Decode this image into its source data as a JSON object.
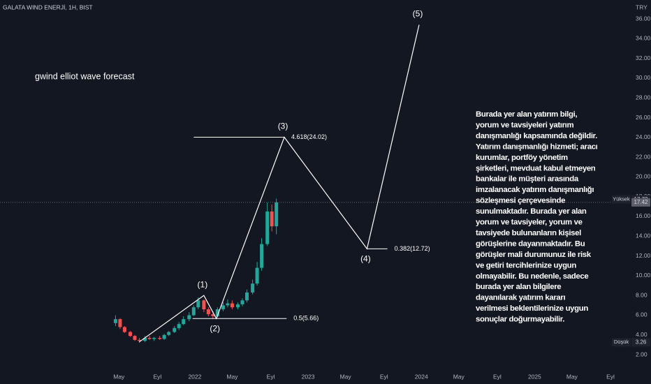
{
  "chart_data": {
    "type": "candlestick",
    "symbol": "GALATA WIND ENERJİ, 1H, BIST",
    "currency": "TRY",
    "title": "gwind elliot wave forecast",
    "xlim": [
      2020.28,
      2025.83
    ],
    "xticks": [
      {
        "value": 2021.33,
        "label": "May"
      },
      {
        "value": 2021.67,
        "label": "Eyl"
      },
      2022,
      {
        "value": 2022.33,
        "label": "May"
      },
      {
        "value": 2022.67,
        "label": "Eyl"
      },
      2023,
      {
        "value": 2023.33,
        "label": "May"
      },
      {
        "value": 2023.67,
        "label": "Eyl"
      },
      2024,
      {
        "value": 2024.33,
        "label": "May"
      },
      {
        "value": 2024.67,
        "label": "Eyl"
      },
      2025,
      {
        "value": 2025.33,
        "label": "May"
      },
      {
        "value": 2025.67,
        "label": "Eyl"
      }
    ],
    "ylim": [
      0.45,
      37.91
    ],
    "yticks": [
      {
        "value": 2,
        "label": "2.00"
      },
      {
        "value": 4,
        "label": "4.00"
      },
      {
        "value": 6,
        "label": "6.00"
      },
      {
        "value": 8,
        "label": "8.00"
      },
      {
        "value": 10,
        "label": "10.00"
      },
      {
        "value": 12,
        "label": "12.00"
      },
      {
        "value": 14,
        "label": "14.00"
      },
      {
        "value": 16,
        "label": "16.00"
      },
      {
        "value": 18,
        "label": "18.00"
      },
      {
        "value": 20,
        "label": "20.00"
      },
      {
        "value": 22,
        "label": "22.00"
      },
      {
        "value": 24,
        "label": "24.00"
      },
      {
        "value": 26,
        "label": "26.00"
      },
      {
        "value": 28,
        "label": "28.00"
      },
      {
        "value": 30,
        "label": "30.00"
      },
      {
        "value": 32,
        "label": "32.00"
      },
      {
        "value": 34,
        "label": "34.00"
      },
      {
        "value": 36,
        "label": "36.00"
      }
    ],
    "grid": false,
    "up_color": "#26a69a",
    "down_color": "#ef5350",
    "candles": {
      "x": [
        2021.3,
        2021.34,
        2021.38,
        2021.43,
        2021.47,
        2021.51,
        2021.56,
        2021.6,
        2021.64,
        2021.69,
        2021.73,
        2021.77,
        2021.82,
        2021.86,
        2021.9,
        2021.95,
        2021.99,
        2022.03,
        2022.08,
        2022.12,
        2022.16,
        2022.2,
        2022.25,
        2022.29,
        2022.33,
        2022.38,
        2022.42,
        2022.46,
        2022.51,
        2022.55,
        2022.59,
        2022.64,
        2022.68,
        2022.72
      ],
      "open": [
        5.2,
        5.6,
        4.8,
        4.3,
        3.9,
        3.5,
        3.4,
        3.7,
        3.6,
        3.7,
        3.6,
        4.0,
        4.3,
        4.7,
        5.1,
        5.6,
        6.0,
        6.8,
        7.5,
        6.6,
        6.1,
        5.9,
        6.6,
        7.0,
        7.2,
        6.8,
        7.1,
        7.5,
        8.3,
        9.2,
        10.8,
        13.2,
        16.5,
        15.0
      ],
      "high": [
        6.0,
        5.7,
        4.9,
        4.4,
        4.0,
        3.7,
        3.9,
        3.9,
        3.8,
        3.9,
        4.1,
        4.4,
        4.9,
        5.3,
        5.9,
        6.3,
        7.0,
        7.8,
        7.6,
        6.8,
        6.4,
        6.8,
        7.3,
        7.6,
        7.5,
        7.3,
        7.7,
        8.6,
        9.6,
        11.4,
        13.8,
        17.4,
        17.2,
        17.8
      ],
      "low": [
        4.9,
        4.6,
        4.2,
        3.8,
        3.4,
        3.2,
        3.3,
        3.5,
        3.4,
        3.5,
        3.5,
        3.9,
        4.2,
        4.5,
        5.0,
        5.4,
        5.9,
        6.6,
        6.3,
        5.9,
        5.6,
        5.8,
        6.4,
        6.8,
        6.6,
        6.6,
        6.9,
        7.3,
        8.1,
        9.0,
        10.5,
        13.0,
        14.5,
        14.2
      ],
      "close": [
        5.6,
        4.8,
        4.3,
        3.9,
        3.5,
        3.4,
        3.7,
        3.6,
        3.7,
        3.6,
        4.0,
        4.3,
        4.7,
        5.1,
        5.6,
        6.0,
        6.8,
        7.5,
        6.6,
        6.1,
        5.9,
        6.6,
        7.0,
        7.2,
        6.8,
        7.1,
        7.5,
        8.3,
        9.2,
        10.8,
        13.2,
        16.5,
        15.0,
        17.42
      ]
    },
    "wave": {
      "color": "#ffffff",
      "x": [
        2021.51,
        2022.08,
        2022.19,
        2022.79,
        2023.52,
        2023.98
      ],
      "values": [
        3.3,
        8.0,
        5.66,
        24.02,
        12.72,
        35.4
      ],
      "point_labels": [
        null,
        "(1)",
        "(2)",
        "(3)",
        "(4)",
        "(5)"
      ]
    },
    "levels": [
      {
        "label": "4.618(24.02)",
        "value": 24.02,
        "x": [
          2021.99,
          2022.79
        ]
      },
      {
        "label": "0.5(5.66)",
        "value": 5.66,
        "x": [
          2021.98,
          2022.81
        ]
      },
      {
        "label": "0.382(12.72)",
        "value": 12.72,
        "x": [
          2023.52,
          2023.7
        ]
      }
    ],
    "price_markers": [
      {
        "label": "Yüksek",
        "value": 17.72
      },
      {
        "value": 17.42
      },
      {
        "label": "Düşük",
        "value": 3.26
      }
    ],
    "disclaimer": [
      "Burada yer alan yatırım bilgi,",
      "yorum ve tavsiyeleri yatırım",
      "danışmanlığı kapsamında değildir.",
      "Yatırım danışmanlığı hizmeti; aracı",
      "kurumlar, portföy yönetim",
      "şirketleri, mevduat kabul etmeyen",
      "bankalar ile müşteri arasında",
      "imzalanacak yatırım danışmanlığı",
      "sözleşmesi çerçevesinde",
      "sunulmaktadır. Burada yer alan",
      "yorum ve tavsiyeler, yorum ve",
      "tavsiyede bulunanların kişisel",
      "görüşlerine dayanmaktadır. Bu",
      "görüşler mali durumunuz ile risk",
      "ve getiri tercihlerinize uygun",
      "olmayabilir. Bu nedenle, sadece",
      "burada yer alan bilgilere",
      "dayanılarak yatırım kararı",
      "verilmesi beklentilerinize uygun",
      "sonuçlar doğurmayabilir."
    ]
  }
}
